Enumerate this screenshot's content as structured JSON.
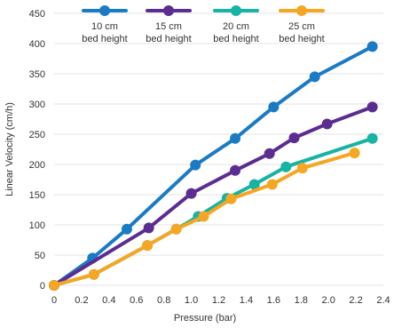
{
  "chart_data": {
    "type": "line",
    "title": "",
    "xlabel": "Pressure (bar)",
    "ylabel": "Linear Velocity (cm/h)",
    "xlim": [
      0,
      2.4
    ],
    "ylim": [
      0,
      450
    ],
    "xticks": [
      0,
      0.2,
      0.4,
      0.6,
      0.8,
      1.0,
      1.2,
      1.4,
      1.6,
      1.8,
      2.0,
      2.2,
      2.4
    ],
    "xtick_labels": [
      "0",
      "0.2",
      "0.4",
      "0.6",
      "0.8",
      "1.0",
      "1.2",
      "1.4",
      "1.6",
      "1.8",
      "2.0",
      "2.2",
      "2.4"
    ],
    "yticks": [
      0,
      50,
      100,
      150,
      200,
      250,
      300,
      350,
      400,
      450
    ],
    "ytick_labels": [
      "0",
      "50",
      "100",
      "150",
      "200",
      "250",
      "300",
      "350",
      "400",
      "450"
    ],
    "grid": "horizontal",
    "legend_position": "top",
    "series": [
      {
        "name_line1": "10 cm",
        "name_line2": "bed height",
        "color": "#1a7bc4",
        "points": [
          [
            0,
            0
          ],
          [
            0.28,
            45
          ],
          [
            0.53,
            93
          ],
          [
            1.03,
            199
          ],
          [
            1.32,
            243
          ],
          [
            1.6,
            295
          ],
          [
            1.9,
            345
          ],
          [
            2.32,
            395
          ]
        ]
      },
      {
        "name_line1": "15 cm",
        "name_line2": "bed height",
        "color": "#5c2d91",
        "points": [
          [
            0,
            0
          ],
          [
            0.69,
            95
          ],
          [
            1.0,
            152
          ],
          [
            1.32,
            190
          ],
          [
            1.57,
            218
          ],
          [
            1.75,
            244
          ],
          [
            1.99,
            267
          ],
          [
            2.32,
            295
          ]
        ]
      },
      {
        "name_line1": "20 cm",
        "name_line2": "bed height",
        "color": "#17b3a3",
        "points": [
          [
            0,
            0
          ],
          [
            0.29,
            18
          ],
          [
            0.68,
            66
          ],
          [
            0.89,
            93
          ],
          [
            1.05,
            114
          ],
          [
            1.26,
            144
          ],
          [
            1.46,
            167
          ],
          [
            1.69,
            196
          ],
          [
            2.32,
            243
          ]
        ]
      },
      {
        "name_line1": "25 cm",
        "name_line2": "bed height",
        "color": "#f5a623",
        "points": [
          [
            0,
            0
          ],
          [
            0.29,
            18
          ],
          [
            0.68,
            66
          ],
          [
            0.89,
            93
          ],
          [
            1.09,
            114
          ],
          [
            1.29,
            143
          ],
          [
            1.59,
            167
          ],
          [
            1.81,
            194
          ],
          [
            2.19,
            219
          ]
        ]
      }
    ]
  }
}
